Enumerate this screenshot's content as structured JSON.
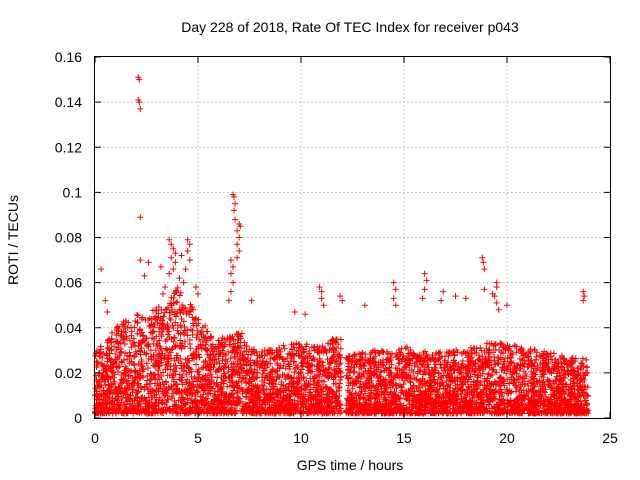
{
  "chart_data": {
    "type": "scatter",
    "title": "Day 228 of 2018, Rate Of TEC Index for receiver p043",
    "xlabel": "GPS time / hours",
    "ylabel": "ROTI / TECUs",
    "xlim": [
      0,
      25
    ],
    "ylim": [
      0,
      0.16
    ],
    "xticks": [
      "0",
      "5",
      "10",
      "15",
      "20",
      "25"
    ],
    "xtick_values": [
      0,
      5,
      10,
      15,
      20,
      25
    ],
    "yticks": [
      "0",
      "0.02",
      "0.04",
      "0.06",
      "0.08",
      "0.1",
      "0.12",
      "0.14",
      "0.16"
    ],
    "ytick_values": [
      0,
      0.02,
      0.04,
      0.06,
      0.08,
      0.1,
      0.12,
      0.14,
      0.16
    ],
    "grid": true,
    "marker": "+",
    "color": "#ff0000",
    "series": [
      {
        "name": "ROTI",
        "envelope_x": [
          0.0,
          0.5,
          1.0,
          1.5,
          2.0,
          2.5,
          3.0,
          3.5,
          4.0,
          4.5,
          5.0,
          5.5,
          6.0,
          6.5,
          7.0,
          7.5,
          8.0,
          9.0,
          10.0,
          11.0,
          11.9,
          12.2,
          13.0,
          14.0,
          15.0,
          16.0,
          17.0,
          18.0,
          19.0,
          20.0,
          21.0,
          22.0,
          23.0,
          23.9
        ],
        "envelope_y": [
          0.022,
          0.026,
          0.03,
          0.034,
          0.036,
          0.034,
          0.038,
          0.042,
          0.045,
          0.04,
          0.035,
          0.03,
          0.026,
          0.028,
          0.03,
          0.024,
          0.022,
          0.024,
          0.026,
          0.024,
          0.028,
          0.02,
          0.022,
          0.023,
          0.024,
          0.022,
          0.022,
          0.023,
          0.025,
          0.025,
          0.023,
          0.022,
          0.02,
          0.02
        ],
        "outliers": [
          {
            "x": 0.3,
            "y": 0.066
          },
          {
            "x": 0.5,
            "y": 0.052
          },
          {
            "x": 0.6,
            "y": 0.047
          },
          {
            "x": 2.1,
            "y": 0.151
          },
          {
            "x": 2.15,
            "y": 0.15
          },
          {
            "x": 2.1,
            "y": 0.141
          },
          {
            "x": 2.15,
            "y": 0.14
          },
          {
            "x": 2.2,
            "y": 0.137
          },
          {
            "x": 2.2,
            "y": 0.089
          },
          {
            "x": 2.2,
            "y": 0.07
          },
          {
            "x": 2.6,
            "y": 0.069
          },
          {
            "x": 2.4,
            "y": 0.063
          },
          {
            "x": 3.2,
            "y": 0.067
          },
          {
            "x": 3.6,
            "y": 0.079
          },
          {
            "x": 3.7,
            "y": 0.077
          },
          {
            "x": 3.8,
            "y": 0.075
          },
          {
            "x": 3.9,
            "y": 0.073
          },
          {
            "x": 3.7,
            "y": 0.071
          },
          {
            "x": 3.9,
            "y": 0.069
          },
          {
            "x": 3.8,
            "y": 0.066
          },
          {
            "x": 3.6,
            "y": 0.064
          },
          {
            "x": 4.2,
            "y": 0.072
          },
          {
            "x": 4.5,
            "y": 0.079
          },
          {
            "x": 4.6,
            "y": 0.077
          },
          {
            "x": 4.5,
            "y": 0.074
          },
          {
            "x": 4.6,
            "y": 0.07
          },
          {
            "x": 4.4,
            "y": 0.066
          },
          {
            "x": 4.1,
            "y": 0.062
          },
          {
            "x": 4.3,
            "y": 0.06
          },
          {
            "x": 3.4,
            "y": 0.058
          },
          {
            "x": 3.3,
            "y": 0.055
          },
          {
            "x": 4.9,
            "y": 0.058
          },
          {
            "x": 5.0,
            "y": 0.055
          },
          {
            "x": 6.5,
            "y": 0.052
          },
          {
            "x": 6.6,
            "y": 0.056
          },
          {
            "x": 6.7,
            "y": 0.06
          },
          {
            "x": 6.7,
            "y": 0.099
          },
          {
            "x": 6.75,
            "y": 0.098
          },
          {
            "x": 6.8,
            "y": 0.095
          },
          {
            "x": 6.75,
            "y": 0.092
          },
          {
            "x": 6.8,
            "y": 0.088
          },
          {
            "x": 7.0,
            "y": 0.086
          },
          {
            "x": 7.05,
            "y": 0.085
          },
          {
            "x": 6.9,
            "y": 0.083
          },
          {
            "x": 7.0,
            "y": 0.08
          },
          {
            "x": 6.9,
            "y": 0.077
          },
          {
            "x": 7.0,
            "y": 0.074
          },
          {
            "x": 6.9,
            "y": 0.071
          },
          {
            "x": 6.6,
            "y": 0.07
          },
          {
            "x": 6.7,
            "y": 0.067
          },
          {
            "x": 6.6,
            "y": 0.064
          },
          {
            "x": 7.6,
            "y": 0.052
          },
          {
            "x": 9.7,
            "y": 0.047
          },
          {
            "x": 10.2,
            "y": 0.046
          },
          {
            "x": 10.9,
            "y": 0.058
          },
          {
            "x": 11.0,
            "y": 0.056
          },
          {
            "x": 11.0,
            "y": 0.053
          },
          {
            "x": 11.1,
            "y": 0.05
          },
          {
            "x": 11.9,
            "y": 0.054
          },
          {
            "x": 12.0,
            "y": 0.052
          },
          {
            "x": 13.1,
            "y": 0.05
          },
          {
            "x": 14.5,
            "y": 0.06
          },
          {
            "x": 14.6,
            "y": 0.057
          },
          {
            "x": 14.5,
            "y": 0.053
          },
          {
            "x": 14.6,
            "y": 0.05
          },
          {
            "x": 16.0,
            "y": 0.064
          },
          {
            "x": 16.1,
            "y": 0.061
          },
          {
            "x": 16.0,
            "y": 0.057
          },
          {
            "x": 15.9,
            "y": 0.053
          },
          {
            "x": 16.8,
            "y": 0.052
          },
          {
            "x": 16.9,
            "y": 0.056
          },
          {
            "x": 17.5,
            "y": 0.054
          },
          {
            "x": 18.0,
            "y": 0.053
          },
          {
            "x": 18.8,
            "y": 0.071
          },
          {
            "x": 18.85,
            "y": 0.069
          },
          {
            "x": 18.9,
            "y": 0.066
          },
          {
            "x": 18.9,
            "y": 0.057
          },
          {
            "x": 19.3,
            "y": 0.055
          },
          {
            "x": 19.5,
            "y": 0.06
          },
          {
            "x": 19.5,
            "y": 0.058
          },
          {
            "x": 19.4,
            "y": 0.054
          },
          {
            "x": 19.5,
            "y": 0.051
          },
          {
            "x": 19.6,
            "y": 0.048
          },
          {
            "x": 20.0,
            "y": 0.05
          },
          {
            "x": 23.7,
            "y": 0.056
          },
          {
            "x": 23.75,
            "y": 0.054
          },
          {
            "x": 23.7,
            "y": 0.052
          }
        ]
      }
    ]
  }
}
